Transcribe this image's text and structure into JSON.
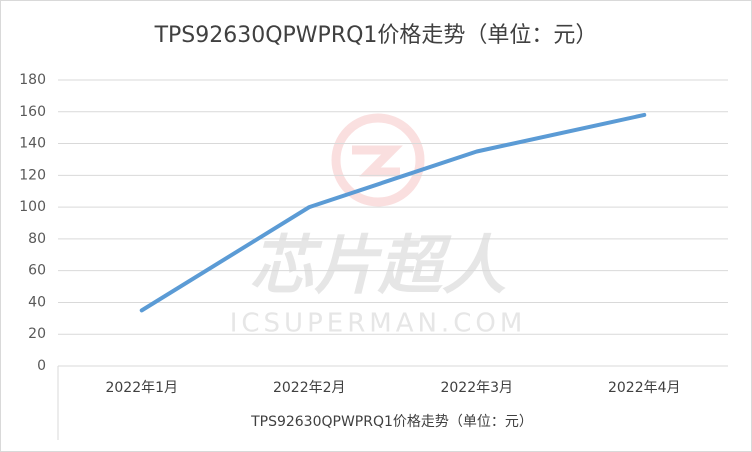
{
  "chart_data": {
    "type": "line",
    "title": "TPS92630QPWPRQ1价格走势（单位：元）",
    "x_label": "TPS92630QPWPRQ1价格走势（单位：元）",
    "watermark": "芯片超人",
    "watermark_url": "ICSUPERMAN.COM",
    "categories": [
      "2022年1月",
      "2022年2月",
      "2022年3月",
      "2022年4月"
    ],
    "values": [
      35,
      100,
      135,
      158
    ],
    "color": "#5b9bd5",
    "ylim": [
      0,
      180
    ],
    "yticks": [
      0,
      20,
      40,
      60,
      80,
      100,
      120,
      140,
      160,
      180
    ],
    "grid": true
  }
}
